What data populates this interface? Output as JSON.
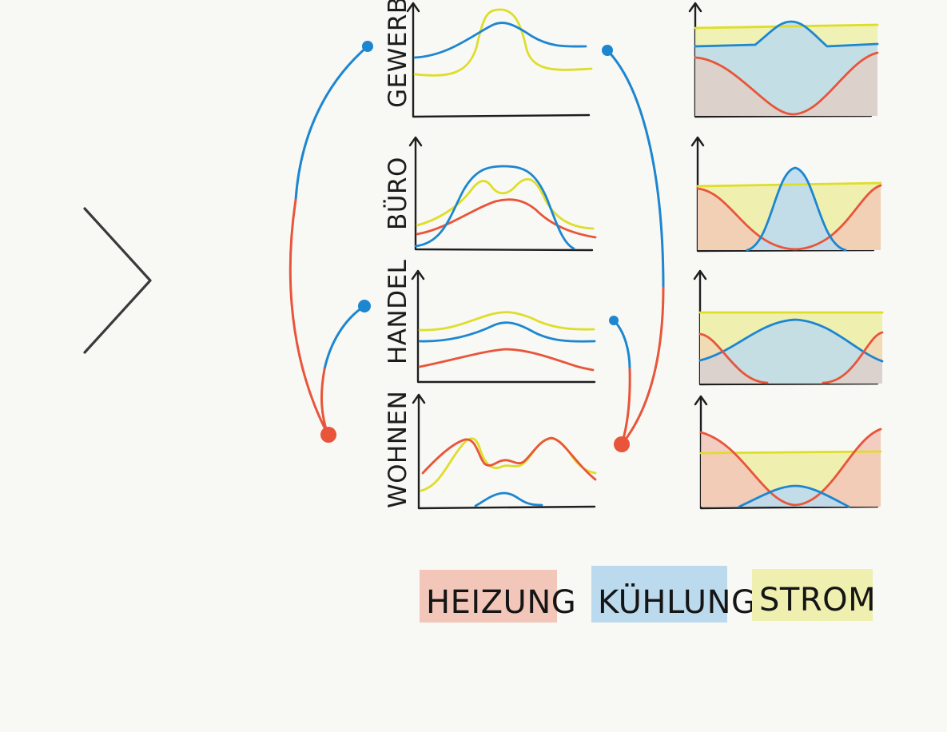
{
  "colors": {
    "heating": "#e8553a",
    "cooling": "#1c86d0",
    "power": "#dede2a",
    "heating_fill": "#f2c6b8",
    "cooling_fill": "#bcdaed",
    "power_fill": "#eff0b0",
    "axis": "#1e1e1e",
    "chevron": "#3a3a3a"
  },
  "icons": {
    "expand": "chevron-right-icon"
  },
  "rows": [
    {
      "id": "gewerbe",
      "label": "GEWERBE"
    },
    {
      "id": "buero",
      "label": "BÜRO"
    },
    {
      "id": "handel",
      "label": "HANDEL"
    },
    {
      "id": "wohnen",
      "label": "WOHNEN"
    }
  ],
  "legend": [
    {
      "key": "heating",
      "label": "HEIZUNG"
    },
    {
      "key": "cooling",
      "label": "KÜHLUNG"
    },
    {
      "key": "power",
      "label": "STROM"
    }
  ]
}
